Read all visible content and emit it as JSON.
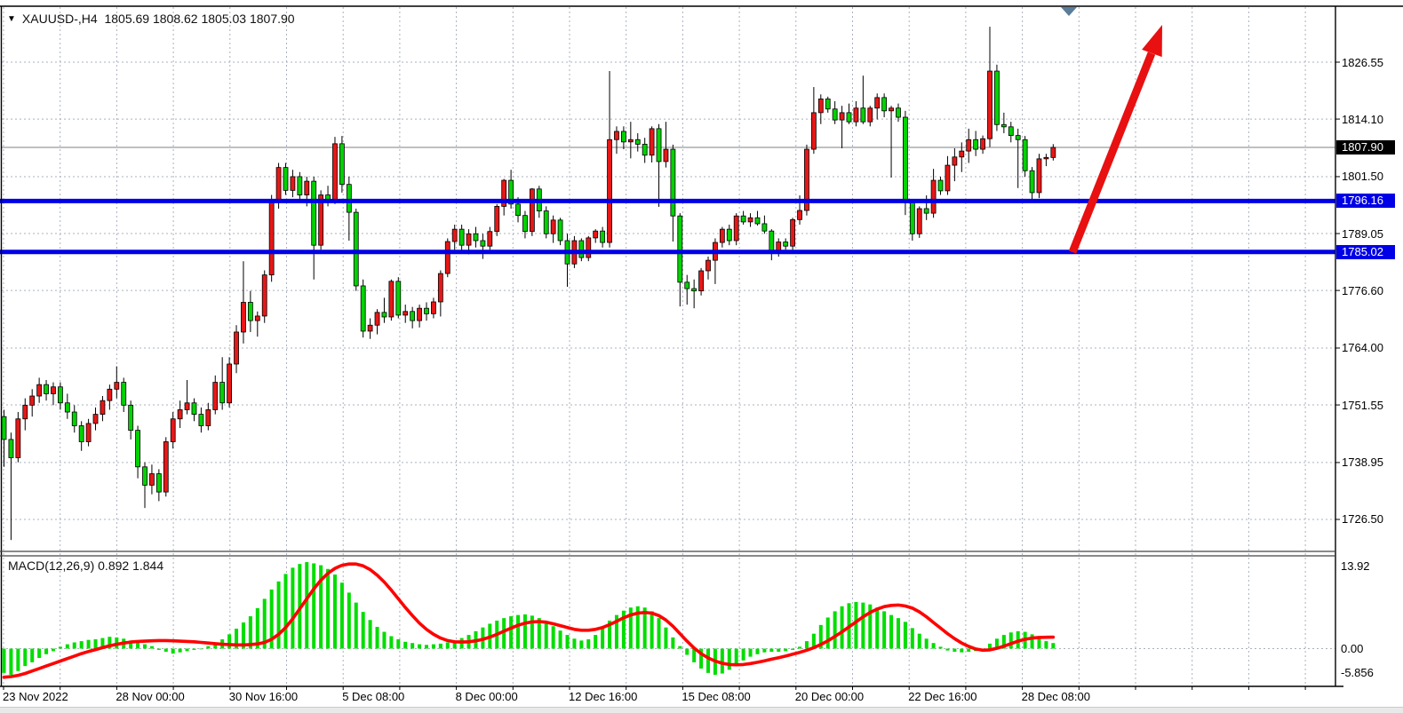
{
  "header": {
    "dropdown_icon": "▼",
    "symbol_info": "XAUUSD-,H4  1805.69 1808.62 1805.03 1807.90"
  },
  "chart_data": {
    "type": "candlestick",
    "symbol": "XAUUSD-",
    "timeframe": "H4",
    "title": "XAUUSD-,H4",
    "ohlc_readout": {
      "open": "1805.69",
      "high": "1808.62",
      "low": "1805.03",
      "close": "1807.90"
    },
    "price_axis": {
      "current_price": "1807.90",
      "current_price_value": 1807.9,
      "ticks": [
        1826.55,
        1814.1,
        1801.5,
        1789.05,
        1776.6,
        1764.0,
        1751.55,
        1738.95,
        1726.5
      ],
      "ylim": [
        1720.5,
        1838.5
      ]
    },
    "time_axis": {
      "labels": [
        "23 Nov 2022",
        "28 Nov 00:00",
        "30 Nov 16:00",
        "5 Dec 08:00",
        "8 Dec 00:00",
        "12 Dec 16:00",
        "15 Dec 08:00",
        "20 Dec 00:00",
        "22 Dec 16:00",
        "28 Dec 08:00"
      ]
    },
    "hlines": [
      {
        "price": 1796.16,
        "label": "1796.16",
        "color": "#0000e6"
      },
      {
        "price": 1785.02,
        "label": "1785.02",
        "color": "#0000e6"
      }
    ],
    "annotations": {
      "trend_arrow": {
        "type": "arrow-up",
        "from_price": 1785.0,
        "to_price": 1831.0,
        "color": "#e81010"
      },
      "anchor_marker": {
        "type": "triangle-down",
        "color": "#5a7d9a"
      }
    },
    "candles": [
      [
        1749.0,
        1750.5,
        1738.0,
        1744.0
      ],
      [
        1744.0,
        1745.5,
        1722.0,
        1740.0
      ],
      [
        1740.0,
        1750.0,
        1739.0,
        1748.5
      ],
      [
        1748.5,
        1753.0,
        1746.0,
        1751.5
      ],
      [
        1751.5,
        1755.0,
        1749.0,
        1753.5
      ],
      [
        1753.5,
        1757.5,
        1752.0,
        1756.0
      ],
      [
        1756.0,
        1757.0,
        1752.5,
        1754.0
      ],
      [
        1754.0,
        1756.5,
        1751.5,
        1755.5
      ],
      [
        1755.5,
        1756.5,
        1750.5,
        1752.0
      ],
      [
        1752.0,
        1754.0,
        1748.5,
        1750.0
      ],
      [
        1750.0,
        1751.5,
        1745.5,
        1747.0
      ],
      [
        1747.0,
        1748.0,
        1741.5,
        1743.5
      ],
      [
        1743.5,
        1748.5,
        1742.5,
        1747.5
      ],
      [
        1747.5,
        1751.0,
        1746.0,
        1749.5
      ],
      [
        1749.5,
        1753.5,
        1748.0,
        1752.5
      ],
      [
        1752.5,
        1756.0,
        1750.5,
        1755.0
      ],
      [
        1755.0,
        1760.0,
        1753.0,
        1756.5
      ],
      [
        1756.5,
        1757.5,
        1750.0,
        1751.5
      ],
      [
        1751.5,
        1752.5,
        1744.0,
        1746.0
      ],
      [
        1746.0,
        1747.0,
        1735.5,
        1738.0
      ],
      [
        1738.0,
        1739.0,
        1729.0,
        1734.0
      ],
      [
        1734.0,
        1738.5,
        1732.0,
        1736.5
      ],
      [
        1736.5,
        1737.5,
        1730.5,
        1732.5
      ],
      [
        1732.5,
        1744.5,
        1731.5,
        1743.5
      ],
      [
        1743.5,
        1750.0,
        1742.0,
        1748.5
      ],
      [
        1748.5,
        1752.5,
        1746.5,
        1750.5
      ],
      [
        1750.5,
        1757.0,
        1749.5,
        1752.0
      ],
      [
        1752.0,
        1753.0,
        1748.0,
        1749.5
      ],
      [
        1749.5,
        1751.0,
        1745.5,
        1747.0
      ],
      [
        1747.0,
        1752.0,
        1746.0,
        1750.5
      ],
      [
        1750.5,
        1758.0,
        1749.5,
        1756.5
      ],
      [
        1756.5,
        1762.0,
        1750.5,
        1752.0
      ],
      [
        1752.0,
        1762.0,
        1751.0,
        1760.5
      ],
      [
        1760.5,
        1769.0,
        1758.5,
        1767.5
      ],
      [
        1767.5,
        1783.0,
        1765.0,
        1774.0
      ],
      [
        1774.0,
        1776.5,
        1767.5,
        1770.0
      ],
      [
        1770.0,
        1772.0,
        1766.5,
        1771.0
      ],
      [
        1771.0,
        1781.0,
        1769.5,
        1780.0
      ],
      [
        1780.0,
        1797.5,
        1778.5,
        1796.0
      ],
      [
        1796.0,
        1804.5,
        1794.5,
        1803.5
      ],
      [
        1803.5,
        1804.5,
        1797.5,
        1798.5
      ],
      [
        1798.5,
        1803.0,
        1797.0,
        1801.5
      ],
      [
        1801.5,
        1802.5,
        1796.5,
        1797.5
      ],
      [
        1797.5,
        1801.5,
        1795.0,
        1800.5
      ],
      [
        1800.5,
        1801.5,
        1779.0,
        1786.5
      ],
      [
        1786.5,
        1798.5,
        1785.5,
        1797.5
      ],
      [
        1797.5,
        1799.5,
        1795.0,
        1796.5
      ],
      [
        1796.5,
        1810.2,
        1795.5,
        1808.7
      ],
      [
        1808.7,
        1810.4,
        1798.0,
        1799.8
      ],
      [
        1799.8,
        1801.5,
        1787.5,
        1793.7
      ],
      [
        1793.7,
        1794.5,
        1776.5,
        1777.6
      ],
      [
        1777.6,
        1779.0,
        1766.3,
        1767.7
      ],
      [
        1767.7,
        1770.5,
        1766.0,
        1769.0
      ],
      [
        1769.0,
        1772.5,
        1767.0,
        1771.8
      ],
      [
        1771.8,
        1775.0,
        1769.5,
        1770.8
      ],
      [
        1770.8,
        1779.0,
        1770.0,
        1778.6
      ],
      [
        1778.6,
        1779.5,
        1770.5,
        1771.2
      ],
      [
        1771.2,
        1773.5,
        1769.5,
        1772.0
      ],
      [
        1772.0,
        1773.0,
        1768.3,
        1770.0
      ],
      [
        1770.0,
        1773.5,
        1768.5,
        1772.7
      ],
      [
        1772.7,
        1774.0,
        1770.0,
        1771.5
      ],
      [
        1771.5,
        1775.0,
        1770.5,
        1774.1
      ],
      [
        1774.1,
        1781.0,
        1770.9,
        1780.3
      ],
      [
        1780.3,
        1788.0,
        1779.5,
        1787.3
      ],
      [
        1787.3,
        1791.0,
        1785.5,
        1790.0
      ],
      [
        1790.0,
        1791.0,
        1785.0,
        1786.5
      ],
      [
        1786.5,
        1790.0,
        1784.5,
        1789.0
      ],
      [
        1789.0,
        1790.5,
        1786.0,
        1787.5
      ],
      [
        1787.5,
        1789.0,
        1783.5,
        1786.3
      ],
      [
        1786.3,
        1790.5,
        1785.5,
        1789.5
      ],
      [
        1789.5,
        1795.5,
        1788.5,
        1795.0
      ],
      [
        1795.0,
        1801.0,
        1793.0,
        1800.7
      ],
      [
        1800.7,
        1803.0,
        1794.5,
        1795.5
      ],
      [
        1795.5,
        1797.0,
        1791.5,
        1793.0
      ],
      [
        1793.0,
        1794.0,
        1788.0,
        1789.5
      ],
      [
        1789.5,
        1799.0,
        1788.5,
        1798.8
      ],
      [
        1798.8,
        1799.5,
        1792.5,
        1794.0
      ],
      [
        1794.0,
        1795.0,
        1788.0,
        1789.0
      ],
      [
        1789.0,
        1793.0,
        1787.0,
        1792.0
      ],
      [
        1792.0,
        1792.5,
        1786.5,
        1787.5
      ],
      [
        1787.5,
        1789.0,
        1777.4,
        1782.4
      ],
      [
        1782.4,
        1788.5,
        1781.5,
        1787.5
      ],
      [
        1787.5,
        1788.0,
        1783.0,
        1783.8
      ],
      [
        1783.8,
        1788.5,
        1783.0,
        1788.1
      ],
      [
        1788.1,
        1790.0,
        1787.0,
        1789.6
      ],
      [
        1789.6,
        1790.5,
        1786.0,
        1787.1
      ],
      [
        1787.1,
        1824.6,
        1786.0,
        1809.6
      ],
      [
        1809.6,
        1812.5,
        1806.5,
        1811.4
      ],
      [
        1811.4,
        1812.5,
        1807.5,
        1809.1
      ],
      [
        1809.1,
        1813.5,
        1805.5,
        1809.6
      ],
      [
        1809.6,
        1811.0,
        1807.0,
        1808.6
      ],
      [
        1808.6,
        1810.0,
        1804.5,
        1806.2
      ],
      [
        1806.2,
        1812.5,
        1804.6,
        1812.0
      ],
      [
        1812.0,
        1813.0,
        1794.9,
        1804.8
      ],
      [
        1804.8,
        1813.5,
        1803.5,
        1807.5
      ],
      [
        1807.5,
        1808.5,
        1787.3,
        1792.9
      ],
      [
        1792.9,
        1793.5,
        1773.1,
        1778.4
      ],
      [
        1778.4,
        1780.0,
        1773.5,
        1777.0
      ],
      [
        1777.0,
        1779.0,
        1772.7,
        1776.5
      ],
      [
        1776.5,
        1781.5,
        1775.5,
        1780.9
      ],
      [
        1780.9,
        1784.0,
        1779.0,
        1783.2
      ],
      [
        1783.2,
        1788.0,
        1778.0,
        1787.1
      ],
      [
        1787.1,
        1790.5,
        1786.0,
        1790.0
      ],
      [
        1790.0,
        1791.0,
        1786.5,
        1787.5
      ],
      [
        1787.5,
        1793.5,
        1786.5,
        1792.9
      ],
      [
        1792.9,
        1794.0,
        1791.0,
        1791.6
      ],
      [
        1791.6,
        1793.5,
        1790.5,
        1792.5
      ],
      [
        1792.5,
        1794.0,
        1790.8,
        1791.2
      ],
      [
        1791.2,
        1793.0,
        1789.0,
        1789.6
      ],
      [
        1789.6,
        1790.0,
        1783.2,
        1784.8
      ],
      [
        1784.8,
        1788.0,
        1784.0,
        1787.2
      ],
      [
        1787.2,
        1788.0,
        1785.5,
        1786.3
      ],
      [
        1786.3,
        1792.5,
        1785.5,
        1792.1
      ],
      [
        1792.1,
        1797.4,
        1791.0,
        1794.1
      ],
      [
        1794.1,
        1808.5,
        1793.0,
        1807.5
      ],
      [
        1807.5,
        1821.1,
        1806.5,
        1815.5
      ],
      [
        1815.5,
        1819.5,
        1813.0,
        1818.5
      ],
      [
        1818.5,
        1819.0,
        1815.5,
        1816.3
      ],
      [
        1816.3,
        1818.0,
        1813.0,
        1813.9
      ],
      [
        1813.9,
        1817.0,
        1807.7,
        1815.5
      ],
      [
        1815.5,
        1817.5,
        1813.0,
        1813.5
      ],
      [
        1813.5,
        1818.0,
        1812.5,
        1816.5
      ],
      [
        1816.5,
        1823.6,
        1813.0,
        1813.5
      ],
      [
        1813.5,
        1817.0,
        1812.5,
        1816.5
      ],
      [
        1816.5,
        1819.7,
        1814.0,
        1818.8
      ],
      [
        1818.8,
        1819.7,
        1814.5,
        1815.9
      ],
      [
        1815.9,
        1817.0,
        1801.3,
        1816.5
      ],
      [
        1816.5,
        1817.5,
        1813.5,
        1814.5
      ],
      [
        1814.5,
        1815.9,
        1793.1,
        1795.8
      ],
      [
        1795.8,
        1796.5,
        1787.5,
        1789.0
      ],
      [
        1789.0,
        1795.0,
        1788.1,
        1794.5
      ],
      [
        1794.5,
        1797.4,
        1792.0,
        1793.5
      ],
      [
        1793.5,
        1803.2,
        1792.5,
        1800.7
      ],
      [
        1800.7,
        1801.5,
        1797.5,
        1798.4
      ],
      [
        1798.4,
        1806.0,
        1797.5,
        1804.0
      ],
      [
        1804.0,
        1807.7,
        1800.5,
        1805.8
      ],
      [
        1805.8,
        1809.0,
        1802.5,
        1807.1
      ],
      [
        1807.1,
        1812.0,
        1804.5,
        1809.6
      ],
      [
        1809.6,
        1811.5,
        1806.0,
        1807.5
      ],
      [
        1807.5,
        1810.5,
        1806.5,
        1809.8
      ],
      [
        1809.8,
        1834.3,
        1808.0,
        1824.6
      ],
      [
        1824.6,
        1826.0,
        1811.5,
        1812.9
      ],
      [
        1812.9,
        1815.5,
        1811.0,
        1812.4
      ],
      [
        1812.4,
        1813.5,
        1809.0,
        1810.5
      ],
      [
        1810.5,
        1812.0,
        1799.0,
        1809.6
      ],
      [
        1809.6,
        1810.4,
        1801.5,
        1802.8
      ],
      [
        1802.8,
        1803.6,
        1796.2,
        1798.0
      ],
      [
        1798.0,
        1806.5,
        1796.8,
        1805.4
      ],
      [
        1805.4,
        1806.5,
        1803.8,
        1805.7
      ],
      [
        1805.69,
        1808.62,
        1805.03,
        1807.9
      ]
    ],
    "indicator": {
      "name": "MACD(12,26,9)",
      "label": "MACD(12,26,9) 0.892 1.844",
      "main_value": "0.892",
      "signal_value": "1.844",
      "scale_labels": [
        "13.92",
        "0.00",
        "-5.856"
      ],
      "histogram": [
        -3.9,
        -4.2,
        -3.6,
        -2.8,
        -2.2,
        -1.5,
        -0.9,
        -0.4,
        0.3,
        0.7,
        1.0,
        1.2,
        1.4,
        1.5,
        1.7,
        1.9,
        1.8,
        1.6,
        1.3,
        1.0,
        0.7,
        0.4,
        -0.2,
        -0.5,
        -0.8,
        -0.6,
        -0.4,
        -0.2,
        -0.1,
        0.4,
        0.9,
        1.5,
        2.3,
        3.2,
        4.2,
        5.2,
        6.5,
        8.0,
        9.5,
        10.8,
        12.0,
        13.0,
        13.6,
        13.9,
        13.7,
        13.4,
        12.8,
        11.9,
        10.6,
        9.0,
        7.4,
        5.9,
        4.6,
        3.5,
        2.7,
        2.0,
        1.5,
        1.1,
        0.9,
        0.7,
        0.6,
        0.7,
        0.8,
        1.0,
        1.3,
        1.7,
        2.2,
        2.8,
        3.4,
        4.0,
        4.5,
        4.9,
        5.2,
        5.4,
        5.5,
        5.3,
        4.9,
        4.3,
        3.6,
        2.9,
        2.2,
        1.6,
        1.3,
        1.5,
        2.2,
        3.3,
        4.5,
        5.4,
        6.1,
        6.6,
        6.8,
        6.6,
        6.0,
        4.9,
        3.4,
        1.8,
        0.4,
        -1.0,
        -2.2,
        -3.2,
        -3.9,
        -4.2,
        -4.0,
        -3.4,
        -2.6,
        -1.9,
        -1.3,
        -0.9,
        -0.6,
        -0.5,
        -0.5,
        -0.4,
        -0.2,
        0.3,
        1.2,
        2.4,
        3.8,
        5.0,
        6.0,
        6.8,
        7.3,
        7.5,
        7.4,
        7.1,
        6.6,
        6.0,
        5.4,
        4.9,
        4.3,
        3.3,
        2.4,
        1.6,
        0.9,
        0.3,
        -0.3,
        -0.5,
        -0.6,
        -0.5,
        -0.4,
        -0.1,
        0.8,
        1.6,
        2.2,
        2.6,
        2.8,
        2.7,
        2.3,
        1.7,
        1.2,
        0.9
      ],
      "signal": [
        -4.6,
        -4.5,
        -4.3,
        -4.0,
        -3.6,
        -3.2,
        -2.8,
        -2.4,
        -2.0,
        -1.6,
        -1.2,
        -0.8,
        -0.45,
        -0.15,
        0.15,
        0.45,
        0.7,
        0.9,
        1.05,
        1.15,
        1.2,
        1.25,
        1.3,
        1.3,
        1.25,
        1.2,
        1.15,
        1.1,
        1.0,
        0.9,
        0.8,
        0.7,
        0.65,
        0.6,
        0.6,
        0.65,
        0.75,
        1.0,
        1.5,
        2.3,
        3.4,
        4.8,
        6.4,
        8.0,
        9.6,
        11.0,
        12.1,
        12.9,
        13.4,
        13.6,
        13.6,
        13.3,
        12.7,
        11.8,
        10.7,
        9.4,
        8.0,
        6.6,
        5.3,
        4.1,
        3.1,
        2.3,
        1.7,
        1.3,
        1.1,
        1.05,
        1.1,
        1.25,
        1.5,
        1.85,
        2.3,
        2.8,
        3.3,
        3.75,
        4.1,
        4.3,
        4.35,
        4.25,
        4.0,
        3.7,
        3.4,
        3.1,
        2.95,
        2.95,
        3.1,
        3.4,
        3.85,
        4.4,
        4.95,
        5.4,
        5.7,
        5.8,
        5.7,
        5.3,
        4.6,
        3.6,
        2.4,
        1.2,
        0.1,
        -0.8,
        -1.5,
        -2.0,
        -2.35,
        -2.55,
        -2.6,
        -2.55,
        -2.4,
        -2.2,
        -1.95,
        -1.7,
        -1.45,
        -1.2,
        -0.9,
        -0.6,
        -0.25,
        0.15,
        0.65,
        1.25,
        1.95,
        2.7,
        3.5,
        4.3,
        5.1,
        5.8,
        6.35,
        6.75,
        6.95,
        7.0,
        6.85,
        6.5,
        5.9,
        5.1,
        4.2,
        3.3,
        2.4,
        1.6,
        0.9,
        0.35,
        -0.05,
        -0.25,
        -0.2,
        0.05,
        0.4,
        0.8,
        1.2,
        1.5,
        1.7,
        1.8,
        1.82,
        1.84
      ]
    }
  },
  "colors": {
    "background": "#ffffff",
    "grid": "#a9b1bf",
    "bull_candle": "#e81717",
    "bear_candle": "#00d300",
    "candle_outline": "#000000",
    "wick": "#000000",
    "hline_blue": "#0000e6",
    "current_price_line": "#808080",
    "current_price_badge_bg": "#000000",
    "macd_histogram": "#00dd00",
    "macd_signal": "#ff0000",
    "arrow": "#e81010",
    "axis_text": "#000000"
  }
}
